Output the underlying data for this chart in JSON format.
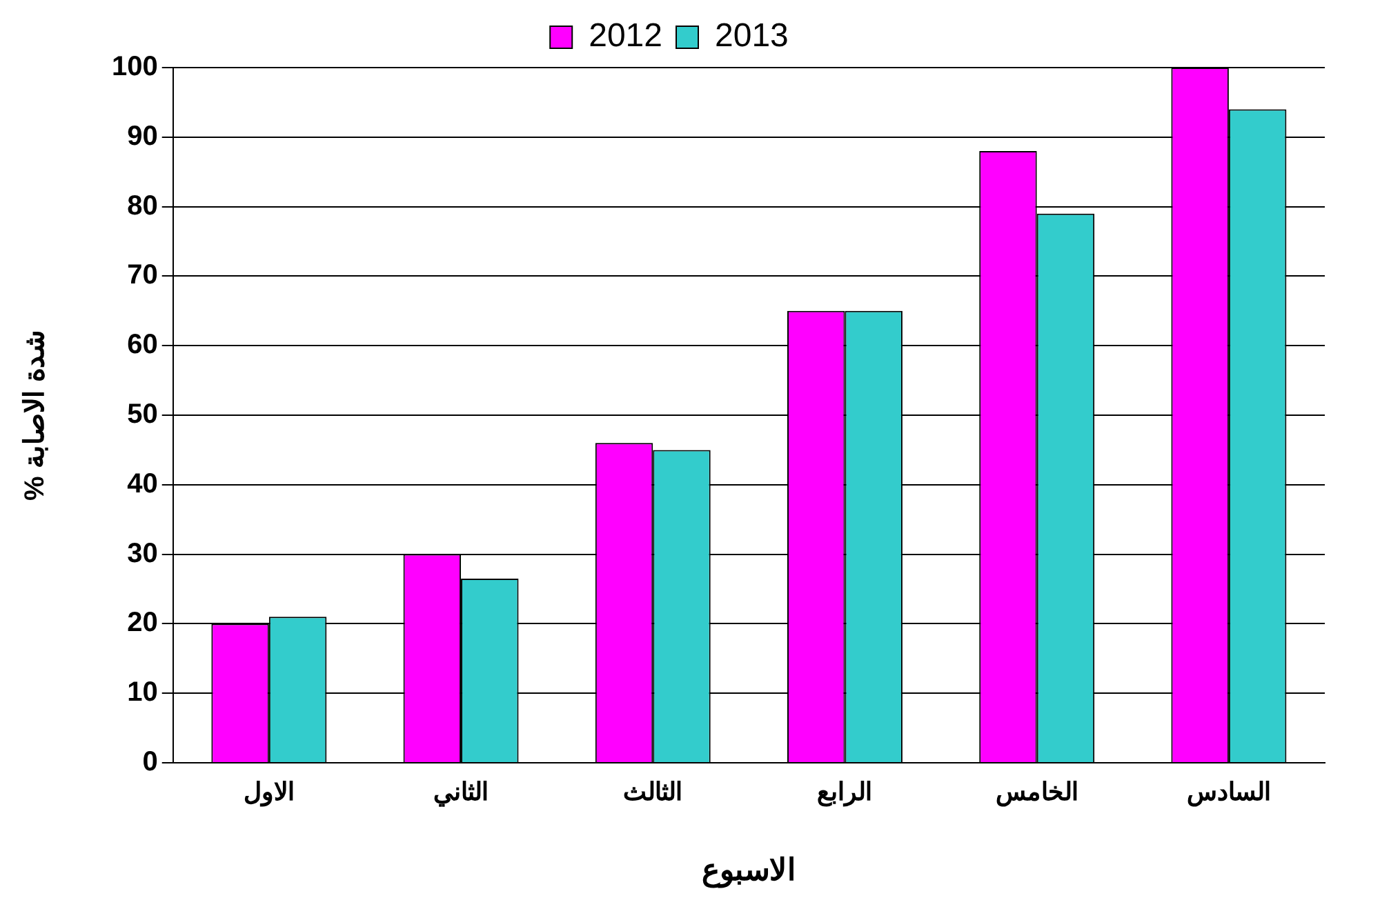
{
  "chart_data": {
    "type": "bar",
    "xlabel": "الاسبوع",
    "ylabel": "% شدة الاصابة",
    "categories": [
      "الاول",
      "الثاني",
      "الثالث",
      "الرابع",
      "الخامس",
      "السادس"
    ],
    "series": [
      {
        "name": "2012",
        "color": "#ff00ff",
        "values": [
          20,
          30,
          46,
          65,
          88,
          100
        ]
      },
      {
        "name": "2013",
        "color": "#33cccc",
        "values": [
          21,
          26.5,
          45,
          65,
          79,
          94
        ]
      }
    ],
    "ylim": [
      0,
      100
    ],
    "yticks": [
      0,
      10,
      20,
      30,
      40,
      50,
      60,
      70,
      80,
      90,
      100
    ],
    "grid": "y",
    "legend": "top"
  }
}
